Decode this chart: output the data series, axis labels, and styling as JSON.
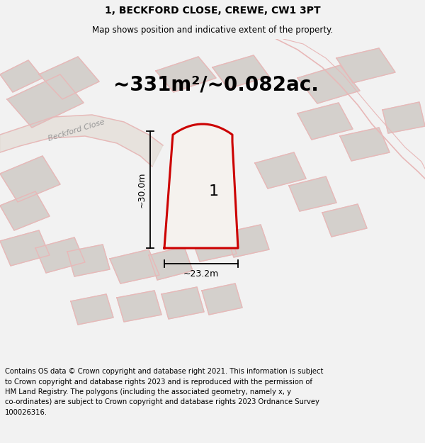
{
  "title": "1, BECKFORD CLOSE, CREWE, CW1 3PT",
  "subtitle": "Map shows position and indicative extent of the property.",
  "area_text": "~331m²/~0.082ac.",
  "dim_width": "~23.2m",
  "dim_height": "~30.0m",
  "plot_number": "1",
  "road_label": "Beckford Close",
  "footer_lines": [
    "Contains OS data © Crown copyright and database right 2021. This information is subject",
    "to Crown copyright and database rights 2023 and is reproduced with the permission of",
    "HM Land Registry. The polygons (including the associated geometry, namely x, y",
    "co-ordinates) are subject to Crown copyright and database rights 2023 Ordnance Survey",
    "100026316."
  ],
  "bg_color": "#f2f2f2",
  "map_bg": "#eeece9",
  "plot_fill": "#f5f2ee",
  "plot_edge": "#cc0000",
  "road_color": "#e8b8b8",
  "road_fill": "#e0d8d0",
  "building_color": "#d4d0cc",
  "title_fontsize": 10,
  "subtitle_fontsize": 8.5,
  "area_fontsize": 20,
  "footer_fontsize": 7.2,
  "plot_number_fontsize": 16
}
